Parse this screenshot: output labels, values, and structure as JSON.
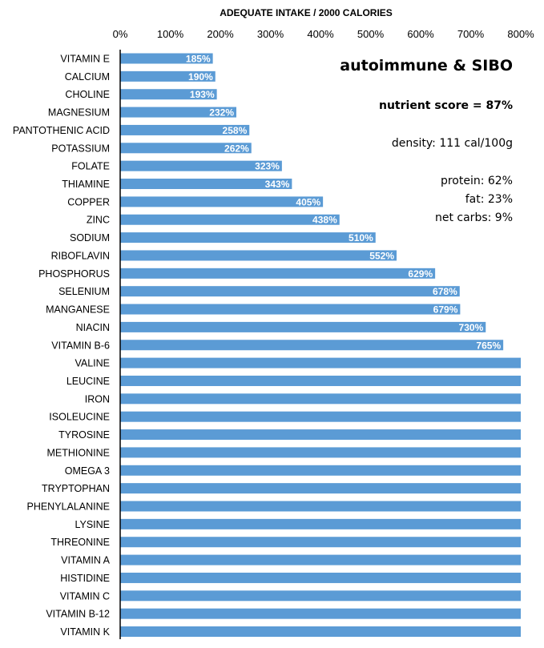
{
  "chart_data": {
    "type": "bar",
    "orientation": "horizontal",
    "title": "ADEQUATE INTAKE / 2000 CALORIES",
    "xlim": [
      0,
      800
    ],
    "xticks": [
      "0%",
      "100%",
      "200%",
      "300%",
      "400%",
      "500%",
      "600%",
      "700%",
      "800%"
    ],
    "grid": false,
    "bar_color": "#5b9bd5",
    "categories": [
      "VITAMIN E",
      "CALCIUM",
      "CHOLINE",
      "MAGNESIUM",
      "PANTOTHENIC ACID",
      "POTASSIUM",
      "FOLATE",
      "THIAMINE",
      "COPPER",
      "ZINC",
      "SODIUM",
      "RIBOFLAVIN",
      "PHOSPHORUS",
      "SELENIUM",
      "MANGANESE",
      "NIACIN",
      "VITAMIN B-6",
      "VALINE",
      "LEUCINE",
      "IRON",
      "ISOLEUCINE",
      "TYROSINE",
      "METHIONINE",
      "OMEGA 3",
      "TRYPTOPHAN",
      "PHENYLALANINE",
      "LYSINE",
      "THREONINE",
      "VITAMIN A",
      "HISTIDINE",
      "VITAMIN C",
      "VITAMIN B-12",
      "VITAMIN K"
    ],
    "values": [
      185,
      190,
      193,
      232,
      258,
      262,
      323,
      343,
      405,
      438,
      510,
      552,
      629,
      678,
      679,
      730,
      765,
      800,
      800,
      800,
      800,
      800,
      800,
      800,
      800,
      800,
      800,
      800,
      800,
      800,
      800,
      800,
      800
    ],
    "data_labels": [
      "185%",
      "190%",
      "193%",
      "232%",
      "258%",
      "262%",
      "323%",
      "343%",
      "405%",
      "438%",
      "510%",
      "552%",
      "629%",
      "678%",
      "679%",
      "730%",
      "765%",
      "",
      "",
      "",
      "",
      "",
      "",
      "",
      "",
      "",
      "",
      "",
      "",
      "",
      "",
      "",
      ""
    ]
  },
  "annotations": {
    "title": "autoimmune & SIBO",
    "score": "nutrient score = 87%",
    "density": "density: 111 cal/100g",
    "protein": "protein: 62%",
    "fat": "fat: 23%",
    "net_carbs": "net carbs: 9%"
  }
}
